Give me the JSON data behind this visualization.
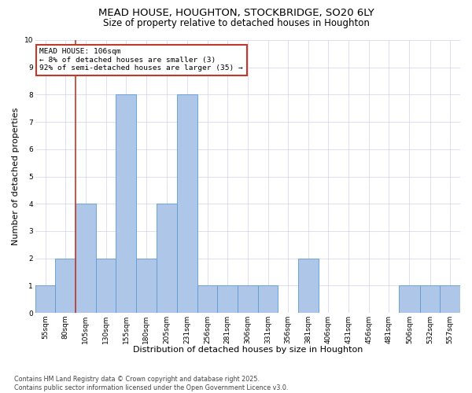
{
  "title": "MEAD HOUSE, HOUGHTON, STOCKBRIDGE, SO20 6LY",
  "subtitle": "Size of property relative to detached houses in Houghton",
  "xlabel": "Distribution of detached houses by size in Houghton",
  "ylabel": "Number of detached properties",
  "footnote1": "Contains HM Land Registry data © Crown copyright and database right 2025.",
  "footnote2": "Contains public sector information licensed under the Open Government Licence v3.0.",
  "annotation_line1": "MEAD HOUSE: 106sqm",
  "annotation_line2": "← 8% of detached houses are smaller (3)",
  "annotation_line3": "92% of semi-detached houses are larger (35) →",
  "bar_edges": [
    55,
    80,
    105,
    130,
    155,
    180,
    205,
    231,
    256,
    281,
    306,
    331,
    356,
    381,
    406,
    431,
    456,
    481,
    506,
    532,
    557
  ],
  "bar_heights": [
    1,
    2,
    4,
    2,
    8,
    2,
    4,
    8,
    1,
    1,
    1,
    1,
    0,
    2,
    0,
    0,
    0,
    0,
    1,
    1,
    1
  ],
  "bar_color": "#aec6e8",
  "bar_edge_color": "#5b9bd5",
  "vline_x": 105,
  "vline_color": "#c0392b",
  "annotation_box_color": "#c0392b",
  "background_color": "#ffffff",
  "grid_color": "#d0d0f0",
  "ylim": [
    0,
    10
  ],
  "yticks": [
    0,
    1,
    2,
    3,
    4,
    5,
    6,
    7,
    8,
    9,
    10
  ],
  "title_fontsize": 9.5,
  "subtitle_fontsize": 8.5,
  "xlabel_fontsize": 8,
  "ylabel_fontsize": 8,
  "tick_fontsize": 6.5,
  "footnote_fontsize": 5.8,
  "annotation_fontsize": 6.8
}
